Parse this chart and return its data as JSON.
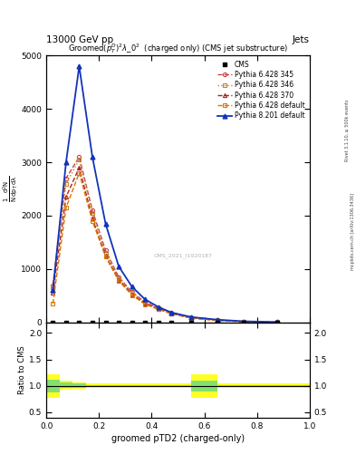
{
  "title_top": "13000 GeV pp",
  "title_right": "Jets",
  "plot_title": "Groomed$(p_T^D)^2\\lambda\\_0^2$  (charged only) (CMS jet substructure)",
  "xlabel": "groomed pTD2 (charged-only)",
  "ylabel_ratio": "Ratio to CMS",
  "rivet_label": "Rivet 3.1.10, ≥ 500k events",
  "arxiv_label": "mcplots.cern.ch [arXiv:1306.3436]",
  "watermark": "CMS_2021_I1920187",
  "cms_x": [
    0.025,
    0.075,
    0.125,
    0.175,
    0.225,
    0.275,
    0.325,
    0.375,
    0.425,
    0.475,
    0.55,
    0.65,
    0.75,
    0.875
  ],
  "cms_y": [
    0,
    0,
    0,
    0,
    0,
    0,
    0,
    0,
    0,
    0,
    0,
    0,
    0,
    0
  ],
  "pythia6_345_x": [
    0.025,
    0.075,
    0.125,
    0.175,
    0.225,
    0.275,
    0.325,
    0.375,
    0.425,
    0.475,
    0.55,
    0.65,
    0.75,
    0.875
  ],
  "pythia6_345_y": [
    700,
    2700,
    3100,
    2100,
    1350,
    850,
    570,
    380,
    270,
    180,
    90,
    42,
    16,
    4
  ],
  "pythia6_346_x": [
    0.025,
    0.075,
    0.125,
    0.175,
    0.225,
    0.275,
    0.325,
    0.375,
    0.425,
    0.475,
    0.55,
    0.65,
    0.75,
    0.875
  ],
  "pythia6_346_y": [
    650,
    2600,
    3050,
    2050,
    1300,
    820,
    550,
    365,
    260,
    170,
    85,
    40,
    14,
    4
  ],
  "pythia6_370_x": [
    0.025,
    0.075,
    0.125,
    0.175,
    0.225,
    0.275,
    0.325,
    0.375,
    0.425,
    0.475,
    0.55,
    0.65,
    0.75,
    0.875
  ],
  "pythia6_370_y": [
    550,
    2350,
    2900,
    1950,
    1250,
    800,
    530,
    350,
    255,
    165,
    82,
    38,
    13,
    3
  ],
  "pythia6_def_x": [
    0.025,
    0.075,
    0.125,
    0.175,
    0.225,
    0.275,
    0.325,
    0.375,
    0.425,
    0.475,
    0.55,
    0.65,
    0.75,
    0.875
  ],
  "pythia6_def_y": [
    350,
    2150,
    2800,
    1900,
    1230,
    780,
    510,
    340,
    245,
    160,
    80,
    36,
    12,
    3
  ],
  "pythia8_def_x": [
    0.025,
    0.075,
    0.125,
    0.175,
    0.225,
    0.275,
    0.325,
    0.375,
    0.425,
    0.475,
    0.55,
    0.65,
    0.75,
    0.875
  ],
  "pythia8_def_y": [
    600,
    3000,
    4800,
    3100,
    1850,
    1050,
    670,
    430,
    290,
    185,
    100,
    50,
    20,
    5
  ],
  "ratio_x_bins": [
    0.0,
    0.05,
    0.1,
    0.15,
    0.2,
    0.25,
    0.3,
    0.35,
    0.4,
    0.45,
    0.5,
    0.55,
    0.6,
    0.65,
    0.7,
    0.75,
    0.8,
    0.85,
    0.9,
    0.95,
    1.0
  ],
  "ratio_yellow_lo": [
    0.78,
    0.92,
    0.95,
    0.97,
    0.97,
    0.97,
    0.97,
    0.97,
    0.97,
    0.97,
    0.97,
    0.78,
    0.78,
    0.97,
    0.97,
    0.97,
    0.97,
    0.97,
    0.97,
    0.97
  ],
  "ratio_yellow_hi": [
    1.22,
    1.1,
    1.07,
    1.05,
    1.05,
    1.05,
    1.05,
    1.05,
    1.05,
    1.05,
    1.05,
    1.22,
    1.22,
    1.05,
    1.05,
    1.05,
    1.05,
    1.05,
    1.05,
    1.05
  ],
  "ratio_green_lo": [
    0.88,
    0.96,
    0.97,
    0.99,
    0.99,
    0.99,
    0.99,
    0.99,
    0.99,
    0.99,
    0.99,
    0.9,
    0.9,
    0.99,
    0.99,
    0.99,
    0.99,
    0.99,
    0.99,
    0.99
  ],
  "ratio_green_hi": [
    1.12,
    1.06,
    1.05,
    1.02,
    1.02,
    1.02,
    1.02,
    1.02,
    1.02,
    1.02,
    1.02,
    1.1,
    1.1,
    1.02,
    1.02,
    1.02,
    1.02,
    1.02,
    1.02,
    1.02
  ],
  "color_345": "#cc4444",
  "color_346": "#bb8833",
  "color_370": "#aa2222",
  "color_def6": "#dd7700",
  "color_py8": "#1133bb",
  "ylim_main": [
    0,
    5000
  ],
  "ylim_ratio": [
    0.4,
    2.2
  ],
  "yticks_main": [
    0,
    1000,
    2000,
    3000,
    4000,
    5000
  ],
  "yticks_ratio": [
    0.5,
    1.0,
    1.5,
    2.0
  ],
  "background_color": "#ffffff"
}
